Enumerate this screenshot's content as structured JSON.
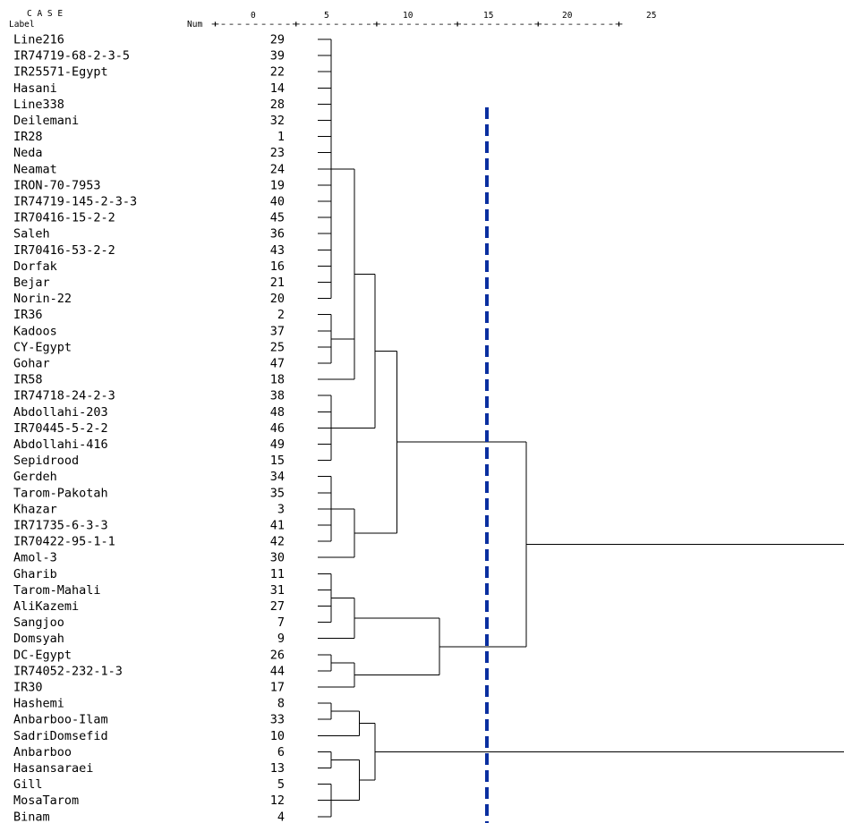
{
  "header": {
    "case": "C A S E",
    "label": "Label",
    "num": "Num",
    "scale_dashes": "+---------+---------+---------+---------+---------+",
    "ticks": [
      "0",
      "5",
      "10",
      "15",
      "20",
      "25"
    ]
  },
  "cases": [
    {
      "label": "Line216",
      "num": "29"
    },
    {
      "label": "IR74719-68-2-3-5",
      "num": "39"
    },
    {
      "label": "IR25571-Egypt",
      "num": "22"
    },
    {
      "label": "Hasani",
      "num": "14"
    },
    {
      "label": "Line338",
      "num": "28"
    },
    {
      "label": "Deilemani",
      "num": "32"
    },
    {
      "label": "IR28",
      "num": "1"
    },
    {
      "label": "Neda",
      "num": "23"
    },
    {
      "label": "Neamat",
      "num": "24"
    },
    {
      "label": "IRON-70-7953",
      "num": "19"
    },
    {
      "label": "IR74719-145-2-3-3",
      "num": "40"
    },
    {
      "label": "IR70416-15-2-2",
      "num": "45"
    },
    {
      "label": "Saleh",
      "num": "36"
    },
    {
      "label": "IR70416-53-2-2",
      "num": "43"
    },
    {
      "label": "Dorfak",
      "num": "16"
    },
    {
      "label": "Bejar",
      "num": "21"
    },
    {
      "label": "Norin-22",
      "num": "20"
    },
    {
      "label": "IR36",
      "num": "2"
    },
    {
      "label": "Kadoos",
      "num": "37"
    },
    {
      "label": "CY-Egypt",
      "num": "25"
    },
    {
      "label": "Gohar",
      "num": "47"
    },
    {
      "label": "IR58",
      "num": "18"
    },
    {
      "label": "IR74718-24-2-3",
      "num": "38"
    },
    {
      "label": "Abdollahi-203",
      "num": "48"
    },
    {
      "label": "IR70445-5-2-2",
      "num": "46"
    },
    {
      "label": "Abdollahi-416",
      "num": "49"
    },
    {
      "label": "Sepidrood",
      "num": "15"
    },
    {
      "label": "Gerdeh",
      "num": "34"
    },
    {
      "label": "Tarom-Pakotah",
      "num": "35"
    },
    {
      "label": "Khazar",
      "num": "3"
    },
    {
      "label": "IR71735-6-3-3",
      "num": "41"
    },
    {
      "label": "IR70422-95-1-1",
      "num": "42"
    },
    {
      "label": "Amol-3",
      "num": "30"
    },
    {
      "label": "Gharib",
      "num": "11"
    },
    {
      "label": "Tarom-Mahali",
      "num": "31"
    },
    {
      "label": "AliKazemi",
      "num": "27"
    },
    {
      "label": "Sangjoo",
      "num": "7"
    },
    {
      "label": "Domsyah",
      "num": "9"
    },
    {
      "label": "DC-Egypt",
      "num": "26"
    },
    {
      "label": "IR74052-232-1-3",
      "num": "44"
    },
    {
      "label": "IR30",
      "num": "17"
    },
    {
      "label": "Hashemi",
      "num": "8"
    },
    {
      "label": "Anbarboo-Ilam",
      "num": "33"
    },
    {
      "label": "SadriDomsefid",
      "num": "10"
    },
    {
      "label": "Anbarboo",
      "num": "6"
    },
    {
      "label": "Hasansaraei",
      "num": "13"
    },
    {
      "label": "Gill",
      "num": "5"
    },
    {
      "label": "MosaTarom",
      "num": "12"
    },
    {
      "label": "Binam",
      "num": "4"
    }
  ],
  "cut_line": {
    "distance": 15,
    "color": "#0a2fa0",
    "style": "dashed"
  }
}
